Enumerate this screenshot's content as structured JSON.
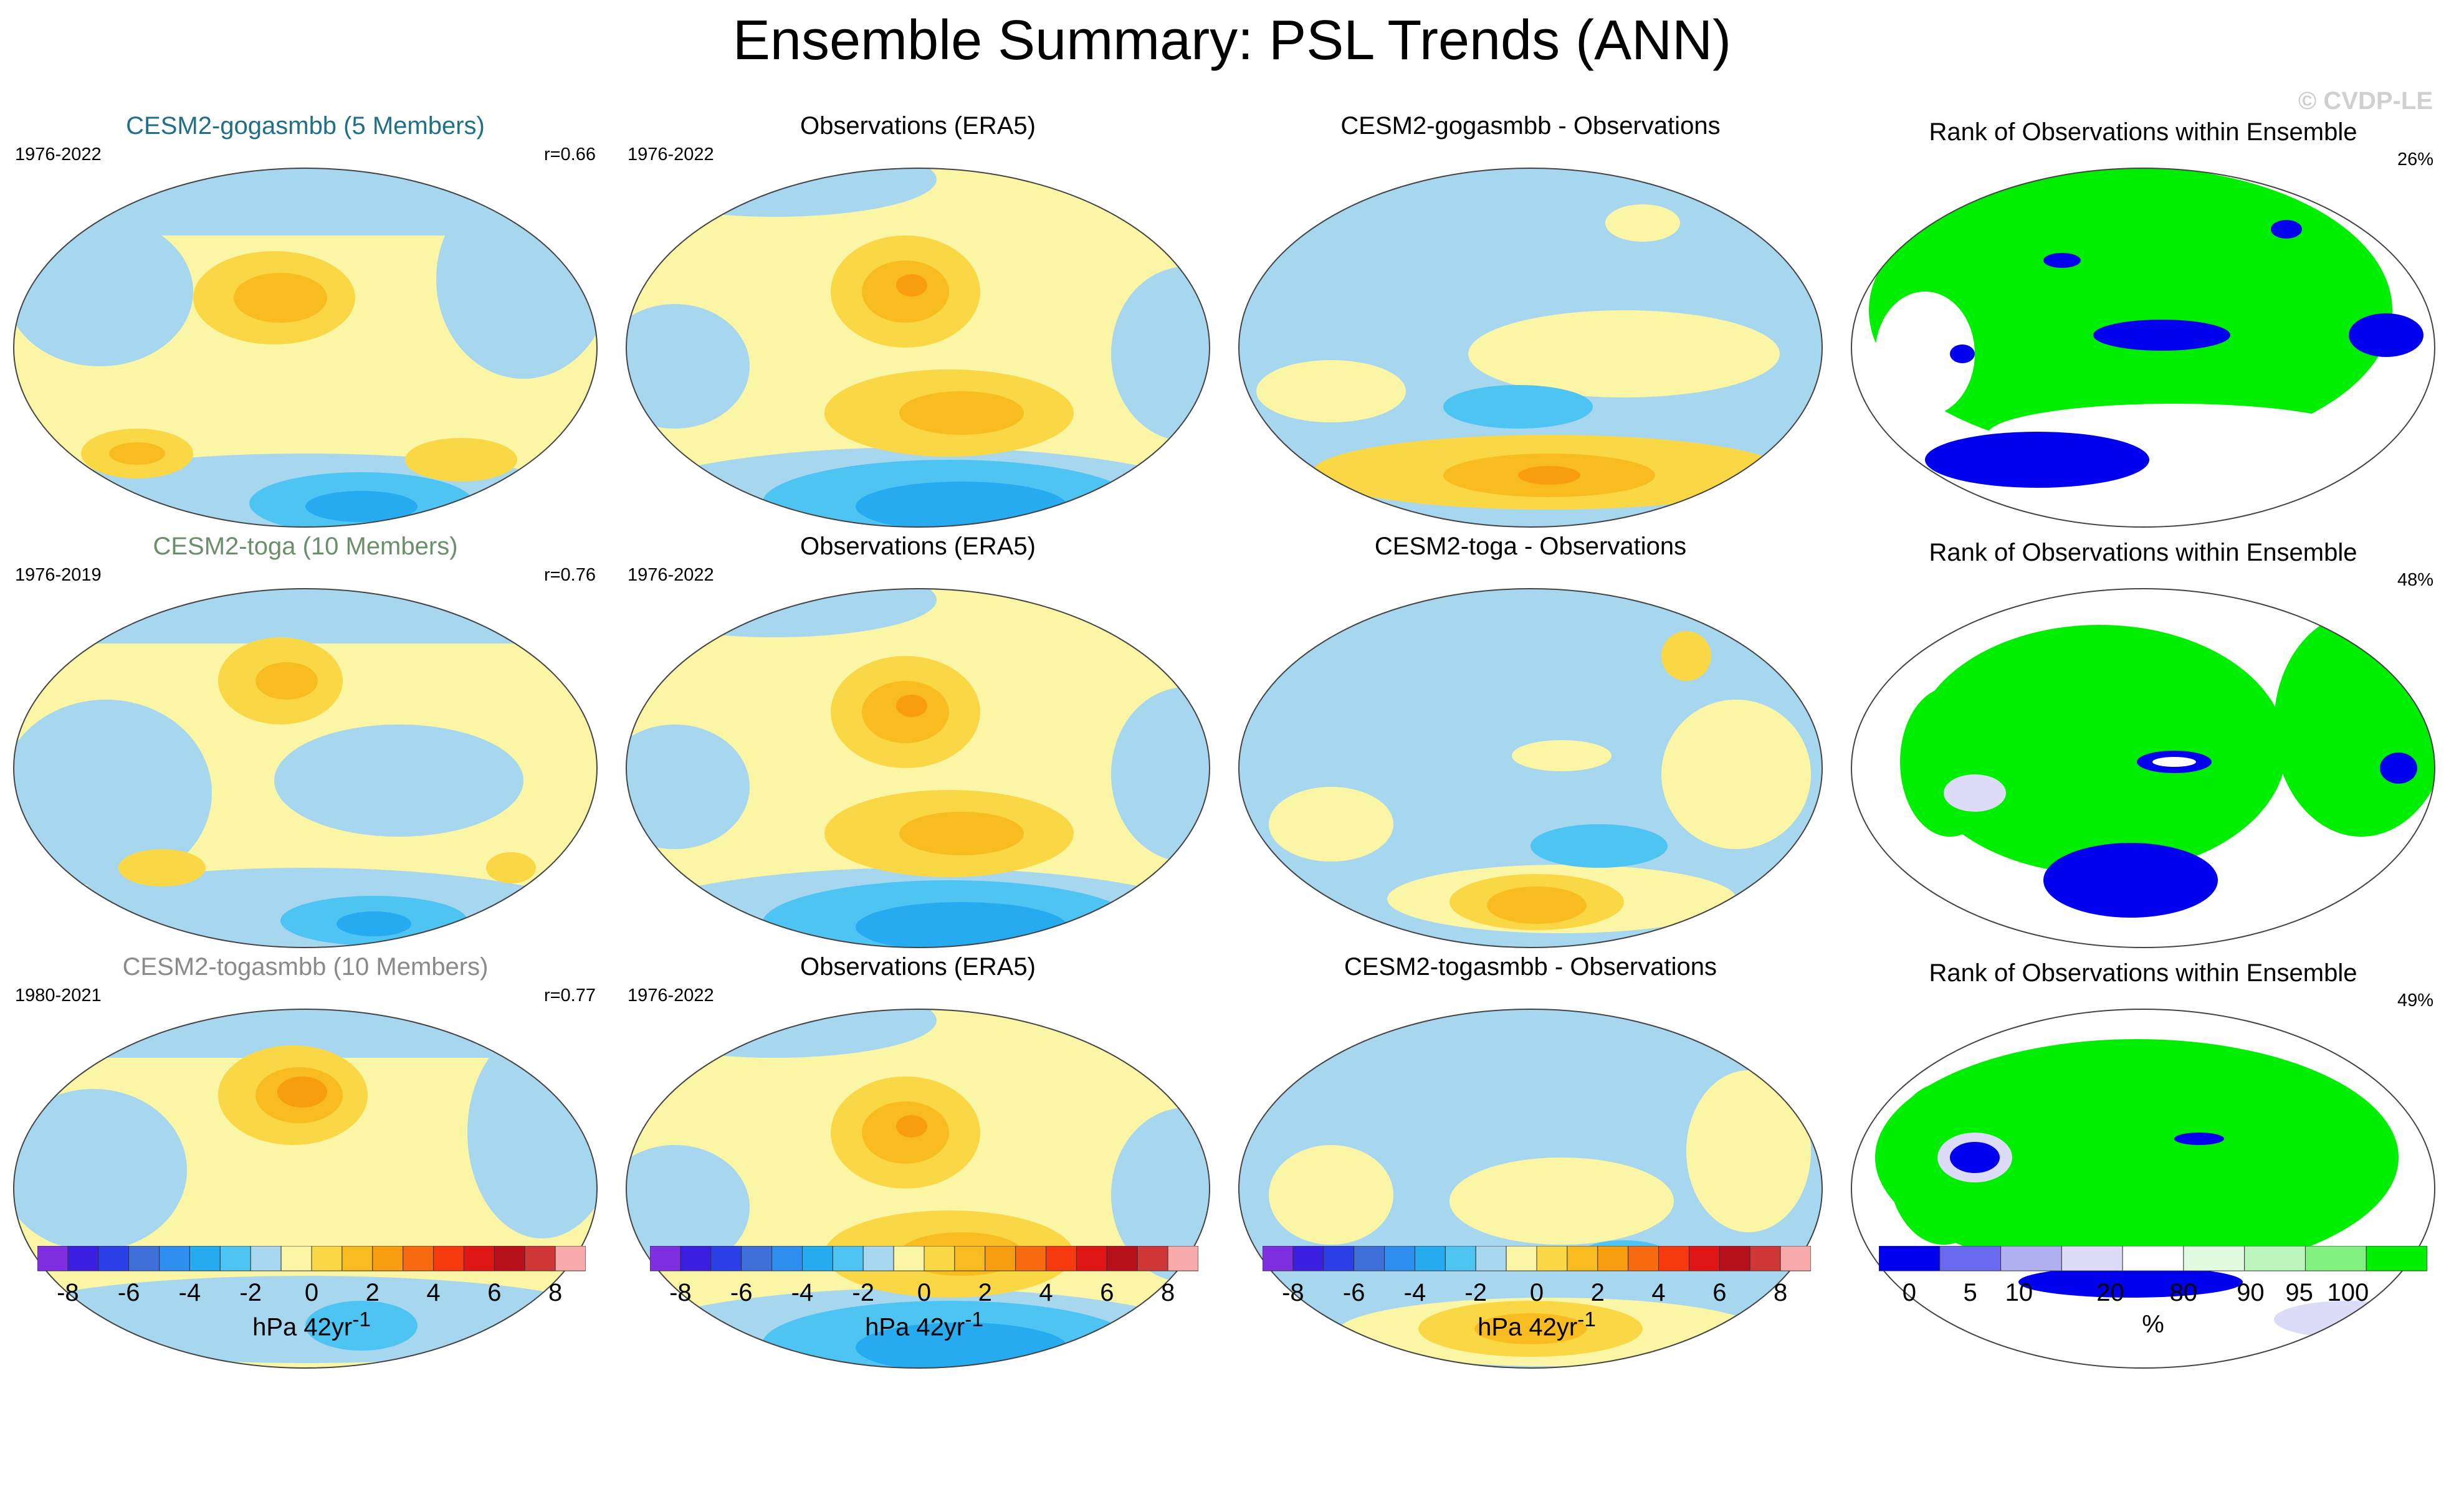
{
  "title": "Ensemble Summary: PSL Trends (ANN)",
  "watermark": "© CVDP-LE",
  "rows": [
    {
      "model": {
        "title": "CESM2-gogasmbb (5 Members)",
        "title_color": "#1f6f8b",
        "years": "1976-2022",
        "corr": "r=0.66"
      },
      "obs": {
        "title": "Observations (ERA5)",
        "years": "1976-2022"
      },
      "diff": {
        "title": "CESM2-gogasmbb - Observations"
      },
      "rank": {
        "title": "Rank of Observations within Ensemble",
        "pct": "26%"
      }
    },
    {
      "model": {
        "title": "CESM2-toga (10 Members)",
        "title_color": "#6b8e6b",
        "years": "1976-2019",
        "corr": "r=0.76"
      },
      "obs": {
        "title": "Observations (ERA5)",
        "years": "1976-2022"
      },
      "diff": {
        "title": "CESM2-toga - Observations"
      },
      "rank": {
        "title": "Rank of Observations within Ensemble",
        "pct": "48%"
      }
    },
    {
      "model": {
        "title": "CESM2-togasmbb (10 Members)",
        "title_color": "#8a8a8a",
        "years": "1980-2021",
        "corr": "r=0.77"
      },
      "obs": {
        "title": "Observations (ERA5)",
        "years": "1976-2022"
      },
      "diff": {
        "title": "CESM2-togasmbb - Observations"
      },
      "rank": {
        "title": "Rank of Observations within Ensemble",
        "pct": "49%"
      }
    }
  ],
  "colorbars": {
    "trend": {
      "colors": [
        "#7f2fe0",
        "#3a1fe0",
        "#2a3fe6",
        "#3f6fd8",
        "#2f8ff0",
        "#26aaf0",
        "#4ec4f2",
        "#a7d7ef",
        "#fbf5a6",
        "#fad845",
        "#f8bc20",
        "#f89c10",
        "#f86a10",
        "#f83a10",
        "#e01515",
        "#b8101a",
        "#d03838",
        "#f8aaaa"
      ],
      "tick_labels": [
        "-8",
        "-6",
        "-4",
        "-2",
        "0",
        "2",
        "4",
        "6",
        "8"
      ],
      "unit": "hPa 42yr",
      "unit_sup": "-1"
    },
    "rank": {
      "colors": [
        "#0000ee",
        "#6a6af0",
        "#b0b0f0",
        "#dcdcf8",
        "#ffffff",
        "#e0fbe0",
        "#bcf5bc",
        "#80f080",
        "#00ee00"
      ],
      "tick_labels": [
        "0",
        "5",
        "10",
        "20",
        "80",
        "90",
        "95",
        "100"
      ],
      "unit": "%"
    }
  },
  "chart_data": {
    "type": "heatmap",
    "title": "Ensemble Summary: PSL Trends (ANN)",
    "variable": "PSL trend",
    "units": "hPa 42yr-1",
    "contour_levels": [
      -8,
      -7,
      -6,
      -5,
      -4,
      -3,
      -2,
      -1,
      0,
      1,
      2,
      3,
      4,
      5,
      6,
      7,
      8
    ],
    "rank_levels": [
      0,
      5,
      10,
      20,
      80,
      90,
      95,
      100
    ],
    "projection": "global map",
    "panels_per_row": [
      "model ensemble mean",
      "observations (ERA5)",
      "model - observations",
      "rank of observations within ensemble"
    ],
    "rank_percentages": [
      "26%",
      "48%",
      "49%"
    ],
    "pattern_correlations": [
      "r=0.66",
      "r=0.76",
      "r=0.77"
    ]
  }
}
